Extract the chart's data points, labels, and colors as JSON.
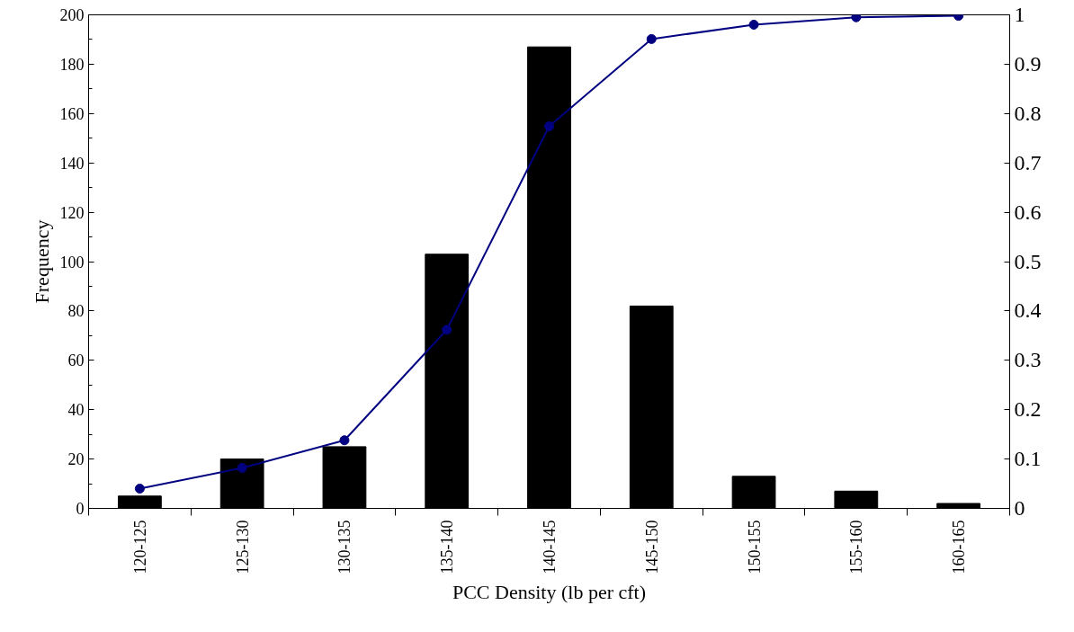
{
  "chart_data": {
    "type": "bar",
    "xlabel": "PCC Density (lb per cft)",
    "ylabel": "Frequency",
    "categories": [
      "120-125",
      "125-130",
      "130-135",
      "135-140",
      "140-145",
      "145-150",
      "150-155",
      "155-160",
      "160-165"
    ],
    "series": [
      {
        "color": "#000000",
        "values": [
          5,
          20,
          25,
          103,
          187,
          82,
          13,
          7,
          2
        ]
      },
      {
        "type": "line",
        "axis": "y2",
        "color": "#000080",
        "values": [
          0.04,
          0.082,
          0.138,
          0.362,
          0.774,
          0.951,
          0.98,
          0.995,
          0.998
        ]
      }
    ],
    "ylim": [
      0,
      200
    ],
    "yticks": [
      0,
      20,
      40,
      60,
      80,
      100,
      120,
      140,
      160,
      180,
      200
    ],
    "y2lim": [
      0,
      1
    ],
    "y2ticks": [
      0,
      0.1,
      0.2,
      0.3,
      0.4,
      0.5,
      0.6,
      0.7,
      0.8,
      0.9,
      1
    ],
    "marker": "circle",
    "line_style": "solid",
    "grid": false
  }
}
